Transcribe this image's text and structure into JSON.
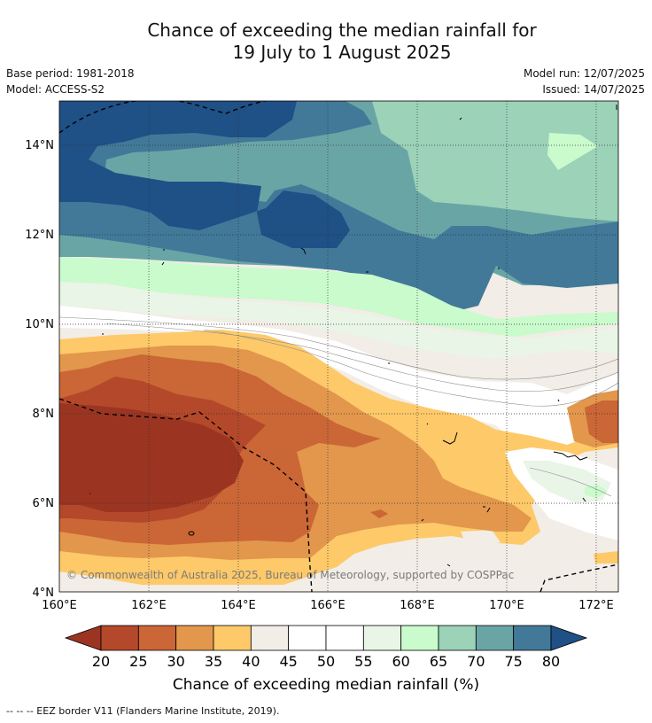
{
  "title_line1": "Chance of exceeding the median rainfall for",
  "title_line2": "19 July to 1 August 2025",
  "base_period": "Base period: 1981-2018",
  "model": "Model: ACCESS-S2",
  "model_run": "Model run: 12/07/2025",
  "issued": "Issued: 14/07/2025",
  "copyright": "© Commonwealth of Australia 2025, Bureau of Meteorology, supported by COSPPac",
  "lat_labels": [
    "14°N",
    "12°N",
    "10°N",
    "8°N",
    "6°N",
    "4°N"
  ],
  "lon_labels": [
    "160°E",
    "162°E",
    "164°E",
    "166°E",
    "168°E",
    "170°E",
    "172°E"
  ],
  "colorbar": {
    "title": "Chance of exceeding median rainfall (%)",
    "ticks": [
      "20",
      "25",
      "30",
      "35",
      "40",
      "45",
      "50",
      "55",
      "60",
      "65",
      "70",
      "75",
      "80"
    ],
    "colors": [
      "#9b3521",
      "#b4482a",
      "#cb6636",
      "#e2974c",
      "#fec969",
      "#f2ede6",
      "#ffffff",
      "#ffffff",
      "#e9f5e6",
      "#c9fbcc",
      "#9bd2b8",
      "#6aa5a6",
      "#427999",
      "#1f5086"
    ]
  },
  "footer": "--  --  -- EEZ border V11 (Flanders Marine Institute, 2019)."
}
